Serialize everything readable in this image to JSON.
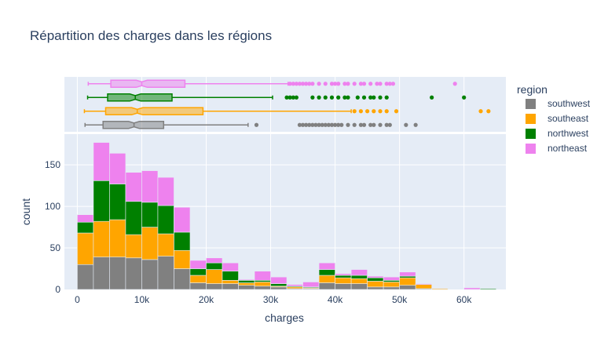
{
  "chart_data": {
    "type": "bar",
    "subtype": "stacked-histogram-with-marginal-boxplot",
    "title": "Répartition des charges dans les régions",
    "xlabel": "charges",
    "ylabel": "count",
    "xlim": [
      -2000,
      66500
    ],
    "ylim": [
      0,
      187
    ],
    "x_ticks": [
      0,
      10000,
      20000,
      30000,
      40000,
      50000,
      60000
    ],
    "x_tick_labels": [
      "0",
      "10k",
      "20k",
      "30k",
      "40k",
      "50k",
      "60k"
    ],
    "y_ticks": [
      0,
      50,
      100,
      150
    ],
    "y_tick_labels": [
      "0",
      "50",
      "100",
      "150"
    ],
    "bin_width": 2500,
    "bin_starts": [
      0,
      2500,
      5000,
      7500,
      10000,
      12500,
      15000,
      17500,
      20000,
      22500,
      25000,
      27500,
      30000,
      32500,
      35000,
      37500,
      40000,
      42500,
      45000,
      47500,
      50000,
      52500,
      55000,
      57500,
      60000,
      62500
    ],
    "legend_title": "region",
    "legend_position": "right",
    "grid": true,
    "series": [
      {
        "name": "southwest",
        "color": "#808080",
        "values": [
          30,
          39,
          39,
          38,
          36,
          40,
          25,
          8,
          7,
          7,
          5,
          4,
          3,
          1,
          1,
          8,
          7,
          7,
          3,
          3,
          5,
          1,
          0,
          0,
          0,
          0
        ],
        "box": {
          "q1": 4000,
          "median": 8800,
          "q3": 13400,
          "whisker_low": 1200,
          "whisker_high": 26500,
          "outliers": [
            27800,
            34500,
            35000,
            35500,
            36000,
            36500,
            37000,
            37500,
            38000,
            38500,
            39000,
            39500,
            40000,
            40500,
            41000,
            42000,
            43000,
            44000,
            44500,
            45500,
            46000,
            47000,
            48000,
            48500,
            51000,
            52500
          ]
        }
      },
      {
        "name": "southeast",
        "color": "#ffa500",
        "values": [
          38,
          43,
          45,
          28,
          39,
          27,
          22,
          9,
          17,
          4,
          3,
          5,
          1,
          2,
          1,
          9,
          7,
          6,
          7,
          6,
          9,
          5,
          1,
          0,
          0,
          0
        ],
        "box": {
          "q1": 4400,
          "median": 9300,
          "q3": 19500,
          "whisker_low": 1100,
          "whisker_high": 42500,
          "outliers": [
            43000,
            44000,
            45000,
            46000,
            47000,
            48000,
            49500,
            62600,
            63800
          ]
        }
      },
      {
        "name": "northwest",
        "color": "#008000",
        "values": [
          13,
          49,
          43,
          40,
          30,
          34,
          22,
          8,
          8,
          11,
          3,
          2,
          3,
          1,
          1,
          7,
          3,
          4,
          4,
          2,
          2,
          0,
          0,
          0,
          0,
          1
        ],
        "box": {
          "q1": 4700,
          "median": 9000,
          "q3": 14700,
          "whisker_low": 1600,
          "whisker_high": 30300,
          "outliers": [
            32500,
            33000,
            33500,
            34000,
            36500,
            37500,
            38500,
            39500,
            40500,
            41500,
            42000,
            43500,
            44500,
            45500,
            46000,
            47000,
            48000,
            55000,
            60000
          ]
        }
      },
      {
        "name": "northeast",
        "color": "#ee82ee",
        "values": [
          9,
          46,
          37,
          35,
          38,
          34,
          30,
          10,
          6,
          10,
          1,
          11,
          8,
          2,
          6,
          8,
          2,
          7,
          2,
          4,
          5,
          1,
          0,
          0,
          2,
          0
        ],
        "box": {
          "q1": 5200,
          "median": 10000,
          "q3": 16700,
          "whisker_low": 1700,
          "whisker_high": 32700,
          "outliers": [
            33000,
            33500,
            34000,
            34500,
            35000,
            35500,
            36000,
            36500,
            37500,
            38500,
            39500,
            40000,
            40500,
            41500,
            42000,
            43000,
            44000,
            44500,
            45500,
            46500,
            47000,
            48000,
            48500,
            49000,
            58600
          ]
        }
      }
    ]
  }
}
